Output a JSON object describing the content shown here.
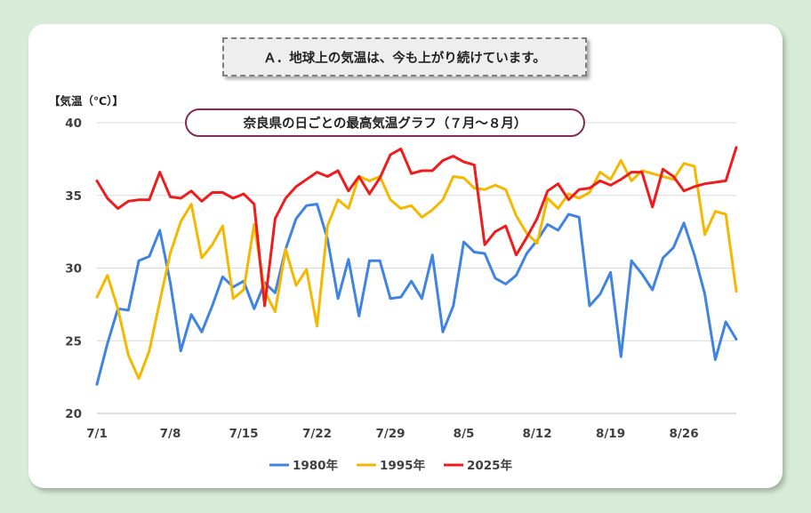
{
  "banner": "Ａ．地球上の気温は、今も上がり続けています。",
  "colors": {
    "background": "#d9ecd9",
    "card": "#ffffff",
    "grid": "#d9d9d9",
    "title_border": "#7f2d52"
  },
  "chart_data": {
    "type": "line",
    "title": "奈良県の日ごとの最高気温グラフ（７月～８月）",
    "ylabel": "【気温（℃）】",
    "xlabel": "",
    "ylim": [
      20,
      40
    ],
    "yticks": [
      20,
      25,
      30,
      35,
      40
    ],
    "xtick_labels": [
      "7/1",
      "7/8",
      "7/15",
      "7/22",
      "7/29",
      "8/5",
      "8/12",
      "8/19",
      "8/26"
    ],
    "xtick_index": [
      0,
      7,
      14,
      21,
      28,
      35,
      42,
      49,
      56
    ],
    "dates_per_series": 62,
    "grid": "horizontal",
    "legend": "bottom",
    "series": [
      {
        "name": "1980年",
        "color": "#3f83e3",
        "values": [
          22.0,
          24.8,
          27.2,
          27.1,
          30.5,
          30.8,
          32.6,
          29.0,
          24.3,
          26.8,
          25.6,
          27.4,
          29.4,
          28.7,
          29.1,
          27.2,
          29.0,
          28.3,
          31.3,
          33.4,
          34.3,
          34.4,
          32.0,
          27.9,
          30.6,
          26.7,
          30.5,
          30.5,
          27.9,
          28.0,
          29.1,
          27.9,
          30.9,
          25.6,
          27.4,
          31.8,
          31.1,
          31.0,
          29.3,
          28.9,
          29.5,
          31.0,
          31.9,
          33.0,
          32.6,
          33.7,
          33.5,
          27.4,
          28.2,
          29.7,
          23.9,
          30.5,
          29.6,
          28.5,
          30.7,
          31.4,
          33.1,
          30.9,
          28.2,
          23.7,
          26.3,
          25.1
        ]
      },
      {
        "name": "1995年",
        "color": "#f5b800",
        "values": [
          28.0,
          29.5,
          27.2,
          24.0,
          22.4,
          24.3,
          27.7,
          31.0,
          33.2,
          34.4,
          30.7,
          31.6,
          32.9,
          27.9,
          28.5,
          33.0,
          28.4,
          27.0,
          31.3,
          28.8,
          29.9,
          26.0,
          32.9,
          34.7,
          34.1,
          36.3,
          36.0,
          36.3,
          34.7,
          34.1,
          34.3,
          33.5,
          34.0,
          34.7,
          36.3,
          36.2,
          35.5,
          35.4,
          35.7,
          35.4,
          33.6,
          32.4,
          31.7,
          34.8,
          34.1,
          35.1,
          34.8,
          35.2,
          36.6,
          36.1,
          37.4,
          36.0,
          36.7,
          36.5,
          36.3,
          36.1,
          37.2,
          37.0,
          32.3,
          33.9,
          33.7,
          28.4
        ]
      },
      {
        "name": "2025年",
        "color": "#ee1c1c",
        "values": [
          36.0,
          34.8,
          34.1,
          34.6,
          34.7,
          34.7,
          36.6,
          34.9,
          34.8,
          35.3,
          34.6,
          35.2,
          35.2,
          34.8,
          35.1,
          34.4,
          27.4,
          33.4,
          34.8,
          35.6,
          36.1,
          36.6,
          36.3,
          36.7,
          35.3,
          36.3,
          35.1,
          36.2,
          37.8,
          38.2,
          36.5,
          36.7,
          36.7,
          37.4,
          37.7,
          37.3,
          37.1,
          31.6,
          32.5,
          32.9,
          30.9,
          32.1,
          33.4,
          35.3,
          35.8,
          34.7,
          35.4,
          35.5,
          36.0,
          35.7,
          36.1,
          36.6,
          36.6,
          34.2,
          36.8,
          36.3,
          35.3,
          35.6,
          35.8,
          35.9,
          36.0,
          38.3
        ]
      }
    ]
  }
}
